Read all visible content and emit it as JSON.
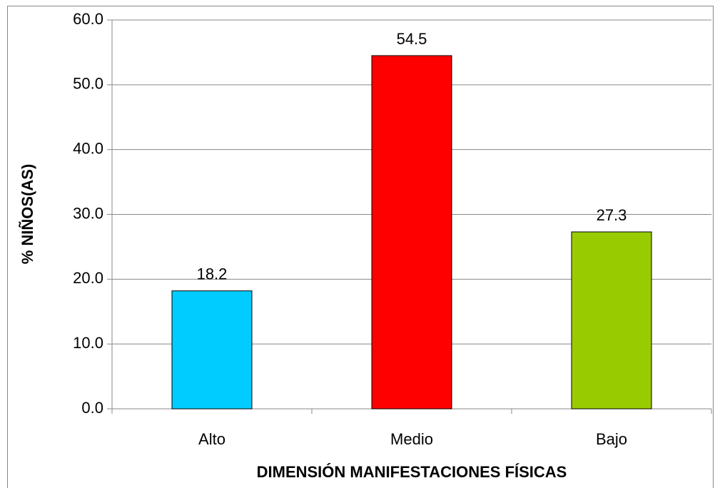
{
  "chart_data": {
    "type": "bar",
    "categories": [
      "Alto",
      "Medio",
      "Bajo"
    ],
    "values": [
      18.2,
      54.5,
      27.3
    ],
    "colors": [
      "#00ccff",
      "#ff0000",
      "#99cc00"
    ],
    "x_label": "DIMENSIÓN MANIFESTACIONES FÍSICAS",
    "y_label": "% NIÑOS(AS)",
    "ylim": [
      0,
      60
    ],
    "yticks": [
      {
        "value": 0,
        "label": "0.0"
      },
      {
        "value": 10,
        "label": "10.0"
      },
      {
        "value": 20,
        "label": "20.0"
      },
      {
        "value": 30,
        "label": "30.0"
      },
      {
        "value": 40,
        "label": "40.0"
      },
      {
        "value": 50,
        "label": "50.0"
      },
      {
        "value": 60,
        "label": "60.0"
      }
    ],
    "grid": true
  }
}
